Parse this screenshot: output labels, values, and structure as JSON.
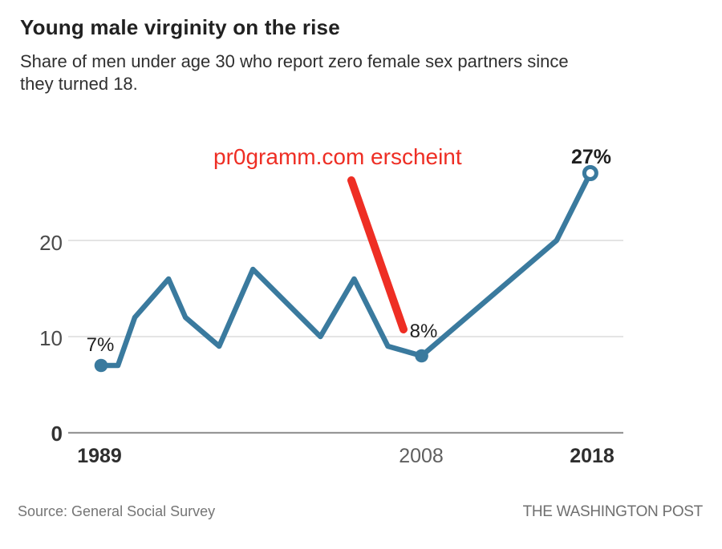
{
  "page": {
    "background": "#ffffff"
  },
  "header": {
    "title": "Young male virginity on the rise",
    "subtitle_line1": "Share of men under age 30 who report zero female sex partners since",
    "subtitle_line2": "they turned 18."
  },
  "annotation": {
    "text": "pr0gramm.com erscheint",
    "color": "#ee2e24"
  },
  "footer": {
    "source": "Source: General Social Survey",
    "attribution": "THE WASHINGTON POST"
  },
  "chart_data": {
    "type": "line",
    "title": "Young male virginity on the rise",
    "subtitle": "Share of men under age 30 who report zero female sex partners since they turned 18.",
    "x": [
      1989,
      1990,
      1991,
      1993,
      1994,
      1996,
      1998,
      2002,
      2004,
      2006,
      2008,
      2016,
      2018
    ],
    "values": [
      7,
      7,
      12,
      16,
      12,
      9,
      17,
      10,
      16,
      9,
      8,
      20,
      27
    ],
    "line_color": "#3a7a9e",
    "grid": "horizontal",
    "xlim": [
      1989,
      2018
    ],
    "ylim": [
      0,
      30
    ],
    "yticks": [
      0,
      10,
      20
    ],
    "ytick_labels": [
      "0",
      "10",
      "20"
    ],
    "xticks": [
      1989,
      2008,
      2018
    ],
    "xtick_labels": [
      "1989",
      "2008",
      "2018"
    ],
    "point_labels": [
      {
        "year": 1989,
        "value": 7,
        "label": "7%",
        "marker": "filled"
      },
      {
        "year": 2008,
        "value": 8,
        "label": "8%",
        "marker": "filled"
      },
      {
        "year": 2018,
        "value": 27,
        "label": "27%",
        "marker": "open"
      }
    ]
  }
}
